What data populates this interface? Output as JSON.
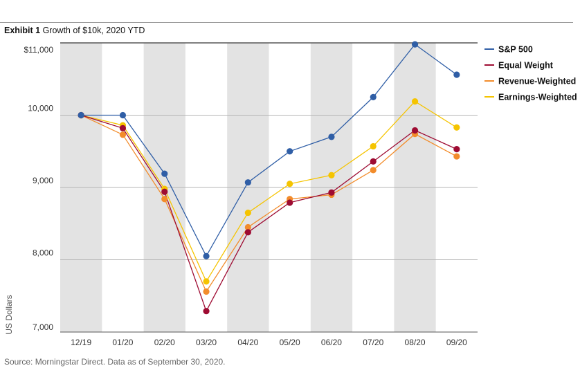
{
  "header": {
    "exhibit_label": "Exhibit 1",
    "exhibit_title": "Growth of $10k, 2020 YTD"
  },
  "footer": {
    "source": "Source: Morningstar Direct. Data as of September 30, 2020."
  },
  "chart_data": {
    "type": "line",
    "title": "Growth of $10k, 2020 YTD",
    "ylabel": "US Dollars",
    "xlabel": "",
    "ylim": [
      7000,
      11000
    ],
    "y_ticks": [
      7000,
      8000,
      9000,
      10000,
      11000
    ],
    "y_tick_labels": [
      "7,000",
      "8,000",
      "9,000",
      "10,000",
      "$11,000"
    ],
    "categories": [
      "12/19",
      "01/20",
      "02/20",
      "03/20",
      "04/20",
      "05/20",
      "06/20",
      "07/20",
      "08/20",
      "09/20"
    ],
    "shaded_columns": [
      0,
      2,
      4,
      6,
      8
    ],
    "grid": "horizontal",
    "legend_position": "right",
    "series": [
      {
        "name": "S&P 500",
        "color": "#2f5ea6",
        "values": [
          10000,
          10000,
          9190,
          8050,
          9070,
          9500,
          9700,
          10250,
          10980,
          10560
        ]
      },
      {
        "name": "Equal Weight",
        "color": "#9e0b32",
        "values": [
          10000,
          9820,
          8940,
          7290,
          8380,
          8790,
          8930,
          9360,
          9790,
          9530
        ]
      },
      {
        "name": "Revenue-Weighted",
        "color": "#f28c2b",
        "values": [
          10000,
          9730,
          8840,
          7560,
          8450,
          8840,
          8900,
          9240,
          9740,
          9430
        ]
      },
      {
        "name": "Earnings-Weighted",
        "color": "#f5c400",
        "values": [
          10000,
          9860,
          8980,
          7700,
          8650,
          9050,
          9170,
          9570,
          10190,
          9830
        ]
      }
    ]
  }
}
